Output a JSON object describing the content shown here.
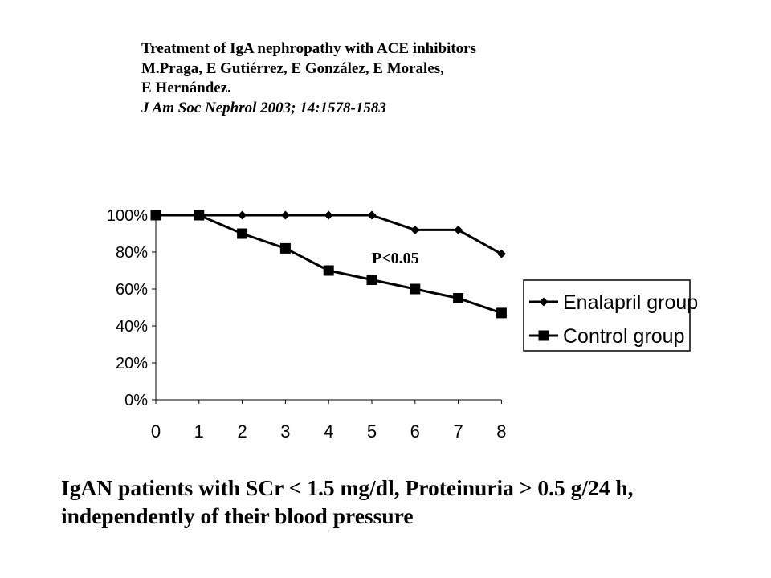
{
  "header": {
    "title": "Treatment of IgA nephropathy with ACE inhibitors",
    "authors_line1": "M.Praga, E Gutiérrez, E González, E Morales,",
    "authors_line2": "E Hernández.",
    "reference": "J Am Soc Nephrol 2003; 14:1578-1583"
  },
  "footer": {
    "line1": "IgAN patients with SCr < 1.5 mg/dl, Proteinuria > 0.5 g/24 h,",
    "line2": "independently of their blood pressure"
  },
  "chart_data": {
    "type": "line",
    "title": "",
    "xlabel": "",
    "ylabel": "",
    "x": [
      0,
      1,
      2,
      3,
      4,
      5,
      6,
      7,
      8
    ],
    "xticks": [
      "0",
      "1",
      "2",
      "3",
      "4",
      "5",
      "6",
      "7",
      "8"
    ],
    "yticks": [
      "0%",
      "20%",
      "40%",
      "60%",
      "80%",
      "100%"
    ],
    "ylim": [
      0,
      100
    ],
    "grid": false,
    "legend_position": "right",
    "annotation": "P<0.05",
    "series": [
      {
        "name": "Enalapril group",
        "marker": "diamond",
        "values": [
          100,
          100,
          100,
          100,
          100,
          100,
          92,
          92,
          79
        ]
      },
      {
        "name": "Control group",
        "marker": "square",
        "values": [
          100,
          100,
          90,
          82,
          70,
          65,
          60,
          55,
          47
        ]
      }
    ],
    "colors": {
      "line": "#000000",
      "background": "#ffffff"
    }
  }
}
